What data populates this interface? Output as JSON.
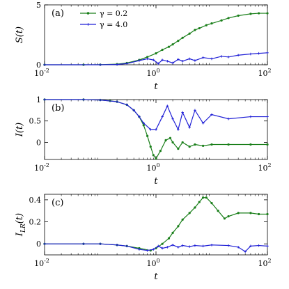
{
  "chart_data": [
    {
      "type": "line",
      "panel_label": "(a)",
      "xlabel": "t",
      "ylabel": "S(t)",
      "xscale": "log",
      "xlim": [
        0.01,
        100
      ],
      "ylim": [
        0,
        5
      ],
      "yticks": [
        "0",
        "5"
      ],
      "ytick_values": [
        0,
        5
      ],
      "xticks": [
        {
          "base": "10",
          "exp": "-2"
        },
        {
          "base": "10",
          "exp": "0"
        },
        {
          "base": "10",
          "exp": "2"
        }
      ],
      "legend": {
        "position": "top-left",
        "entries": [
          "γ = 0.2",
          "γ = 4.0"
        ]
      },
      "series": [
        {
          "name": "γ = 0.2",
          "color": "#1a7f1a",
          "x": [
            0.01,
            0.05,
            0.1,
            0.2,
            0.3,
            0.5,
            0.7,
            1.0,
            1.3,
            1.7,
            2.0,
            2.5,
            3.0,
            4.0,
            5.0,
            6.0,
            8.0,
            10,
            15,
            20,
            30,
            50,
            70,
            100
          ],
          "y": [
            0,
            0,
            0.01,
            0.05,
            0.15,
            0.4,
            0.65,
            0.95,
            1.25,
            1.5,
            1.7,
            2.0,
            2.25,
            2.6,
            2.9,
            3.05,
            3.3,
            3.45,
            3.7,
            3.9,
            4.1,
            4.25,
            4.3,
            4.3
          ]
        },
        {
          "name": "γ = 4.0",
          "color": "#1f1fd6",
          "x": [
            0.01,
            0.1,
            0.2,
            0.3,
            0.5,
            0.7,
            0.9,
            1.1,
            1.3,
            1.6,
            2.0,
            2.5,
            3.0,
            4.0,
            5.0,
            7.0,
            10,
            15,
            20,
            30,
            50,
            70,
            100
          ],
          "y": [
            0,
            0,
            0.02,
            0.1,
            0.35,
            0.5,
            0.4,
            0.1,
            0.4,
            0.3,
            0.15,
            0.45,
            0.3,
            0.5,
            0.35,
            0.6,
            0.5,
            0.7,
            0.65,
            0.8,
            0.9,
            0.95,
            1.0
          ]
        }
      ]
    },
    {
      "type": "line",
      "panel_label": "(b)",
      "xlabel": "t",
      "ylabel": "I(t)",
      "xscale": "log",
      "xlim": [
        0.01,
        100
      ],
      "ylim": [
        -0.4,
        1
      ],
      "yticks": [
        "0",
        "0.5",
        "1"
      ],
      "ytick_values": [
        0,
        0.5,
        1
      ],
      "xticks": [
        {
          "base": "10",
          "exp": "-2"
        },
        {
          "base": "10",
          "exp": "0"
        },
        {
          "base": "10",
          "exp": "2"
        }
      ],
      "series": [
        {
          "name": "γ = 0.2",
          "color": "#1a7f1a",
          "x": [
            0.01,
            0.05,
            0.1,
            0.15,
            0.2,
            0.3,
            0.4,
            0.5,
            0.6,
            0.7,
            0.8,
            0.9,
            1.0,
            1.2,
            1.5,
            1.8,
            2.0,
            2.5,
            3.0,
            4.0,
            5.0,
            7.0,
            10,
            20,
            50,
            100
          ],
          "y": [
            1,
            1,
            0.99,
            0.97,
            0.95,
            0.88,
            0.75,
            0.6,
            0.4,
            0.15,
            -0.1,
            -0.3,
            -0.38,
            -0.2,
            0.05,
            0.1,
            0.0,
            -0.15,
            0.0,
            -0.1,
            -0.05,
            -0.08,
            -0.05,
            -0.05,
            -0.05,
            -0.05
          ]
        },
        {
          "name": "γ = 4.0",
          "color": "#1f1fd6",
          "x": [
            0.01,
            0.05,
            0.1,
            0.2,
            0.3,
            0.4,
            0.5,
            0.6,
            0.8,
            1.0,
            1.3,
            1.6,
            2.0,
            2.5,
            3.0,
            4.0,
            5.0,
            7.0,
            10,
            20,
            50,
            100
          ],
          "y": [
            1,
            1,
            0.99,
            0.95,
            0.88,
            0.75,
            0.6,
            0.45,
            0.3,
            0.3,
            0.6,
            0.85,
            0.55,
            0.3,
            0.7,
            0.35,
            0.75,
            0.45,
            0.65,
            0.55,
            0.6,
            0.6
          ]
        }
      ]
    },
    {
      "type": "line",
      "panel_label": "(c)",
      "xlabel": "t",
      "ylabel": "I_LR(t)",
      "xscale": "log",
      "xlim": [
        0.01,
        100
      ],
      "ylim": [
        -0.1,
        0.45
      ],
      "yticks": [
        "0",
        "0.2",
        "0.4"
      ],
      "ytick_values": [
        0,
        0.2,
        0.4
      ],
      "xticks": [
        {
          "base": "10",
          "exp": "-2"
        },
        {
          "base": "10",
          "exp": "0"
        },
        {
          "base": "10",
          "exp": "2"
        }
      ],
      "series": [
        {
          "name": "γ = 0.2",
          "color": "#1a7f1a",
          "x": [
            0.01,
            0.05,
            0.1,
            0.2,
            0.3,
            0.5,
            0.8,
            1.0,
            1.3,
            1.7,
            2.0,
            2.5,
            3.0,
            4.0,
            5.0,
            6.0,
            7.0,
            8.0,
            10,
            13,
            17,
            20,
            30,
            50,
            70,
            100
          ],
          "y": [
            0,
            0,
            0,
            -0.01,
            -0.02,
            -0.04,
            -0.06,
            -0.04,
            0.0,
            0.05,
            0.1,
            0.16,
            0.22,
            0.28,
            0.33,
            0.38,
            0.42,
            0.42,
            0.37,
            0.3,
            0.23,
            0.25,
            0.28,
            0.28,
            0.27,
            0.27
          ]
        },
        {
          "name": "γ = 4.0",
          "color": "#1f1fd6",
          "x": [
            0.01,
            0.05,
            0.1,
            0.2,
            0.3,
            0.5,
            0.7,
            0.9,
            1.1,
            1.3,
            1.6,
            2.0,
            2.5,
            3.0,
            4.0,
            5.0,
            7.0,
            10,
            20,
            30,
            40,
            50,
            70,
            100
          ],
          "y": [
            0,
            0,
            0,
            -0.01,
            -0.02,
            -0.05,
            -0.06,
            -0.05,
            -0.02,
            -0.04,
            -0.03,
            -0.01,
            -0.03,
            -0.015,
            -0.025,
            -0.015,
            -0.02,
            -0.01,
            -0.015,
            -0.03,
            -0.07,
            -0.02,
            -0.015,
            -0.02
          ]
        }
      ]
    }
  ]
}
